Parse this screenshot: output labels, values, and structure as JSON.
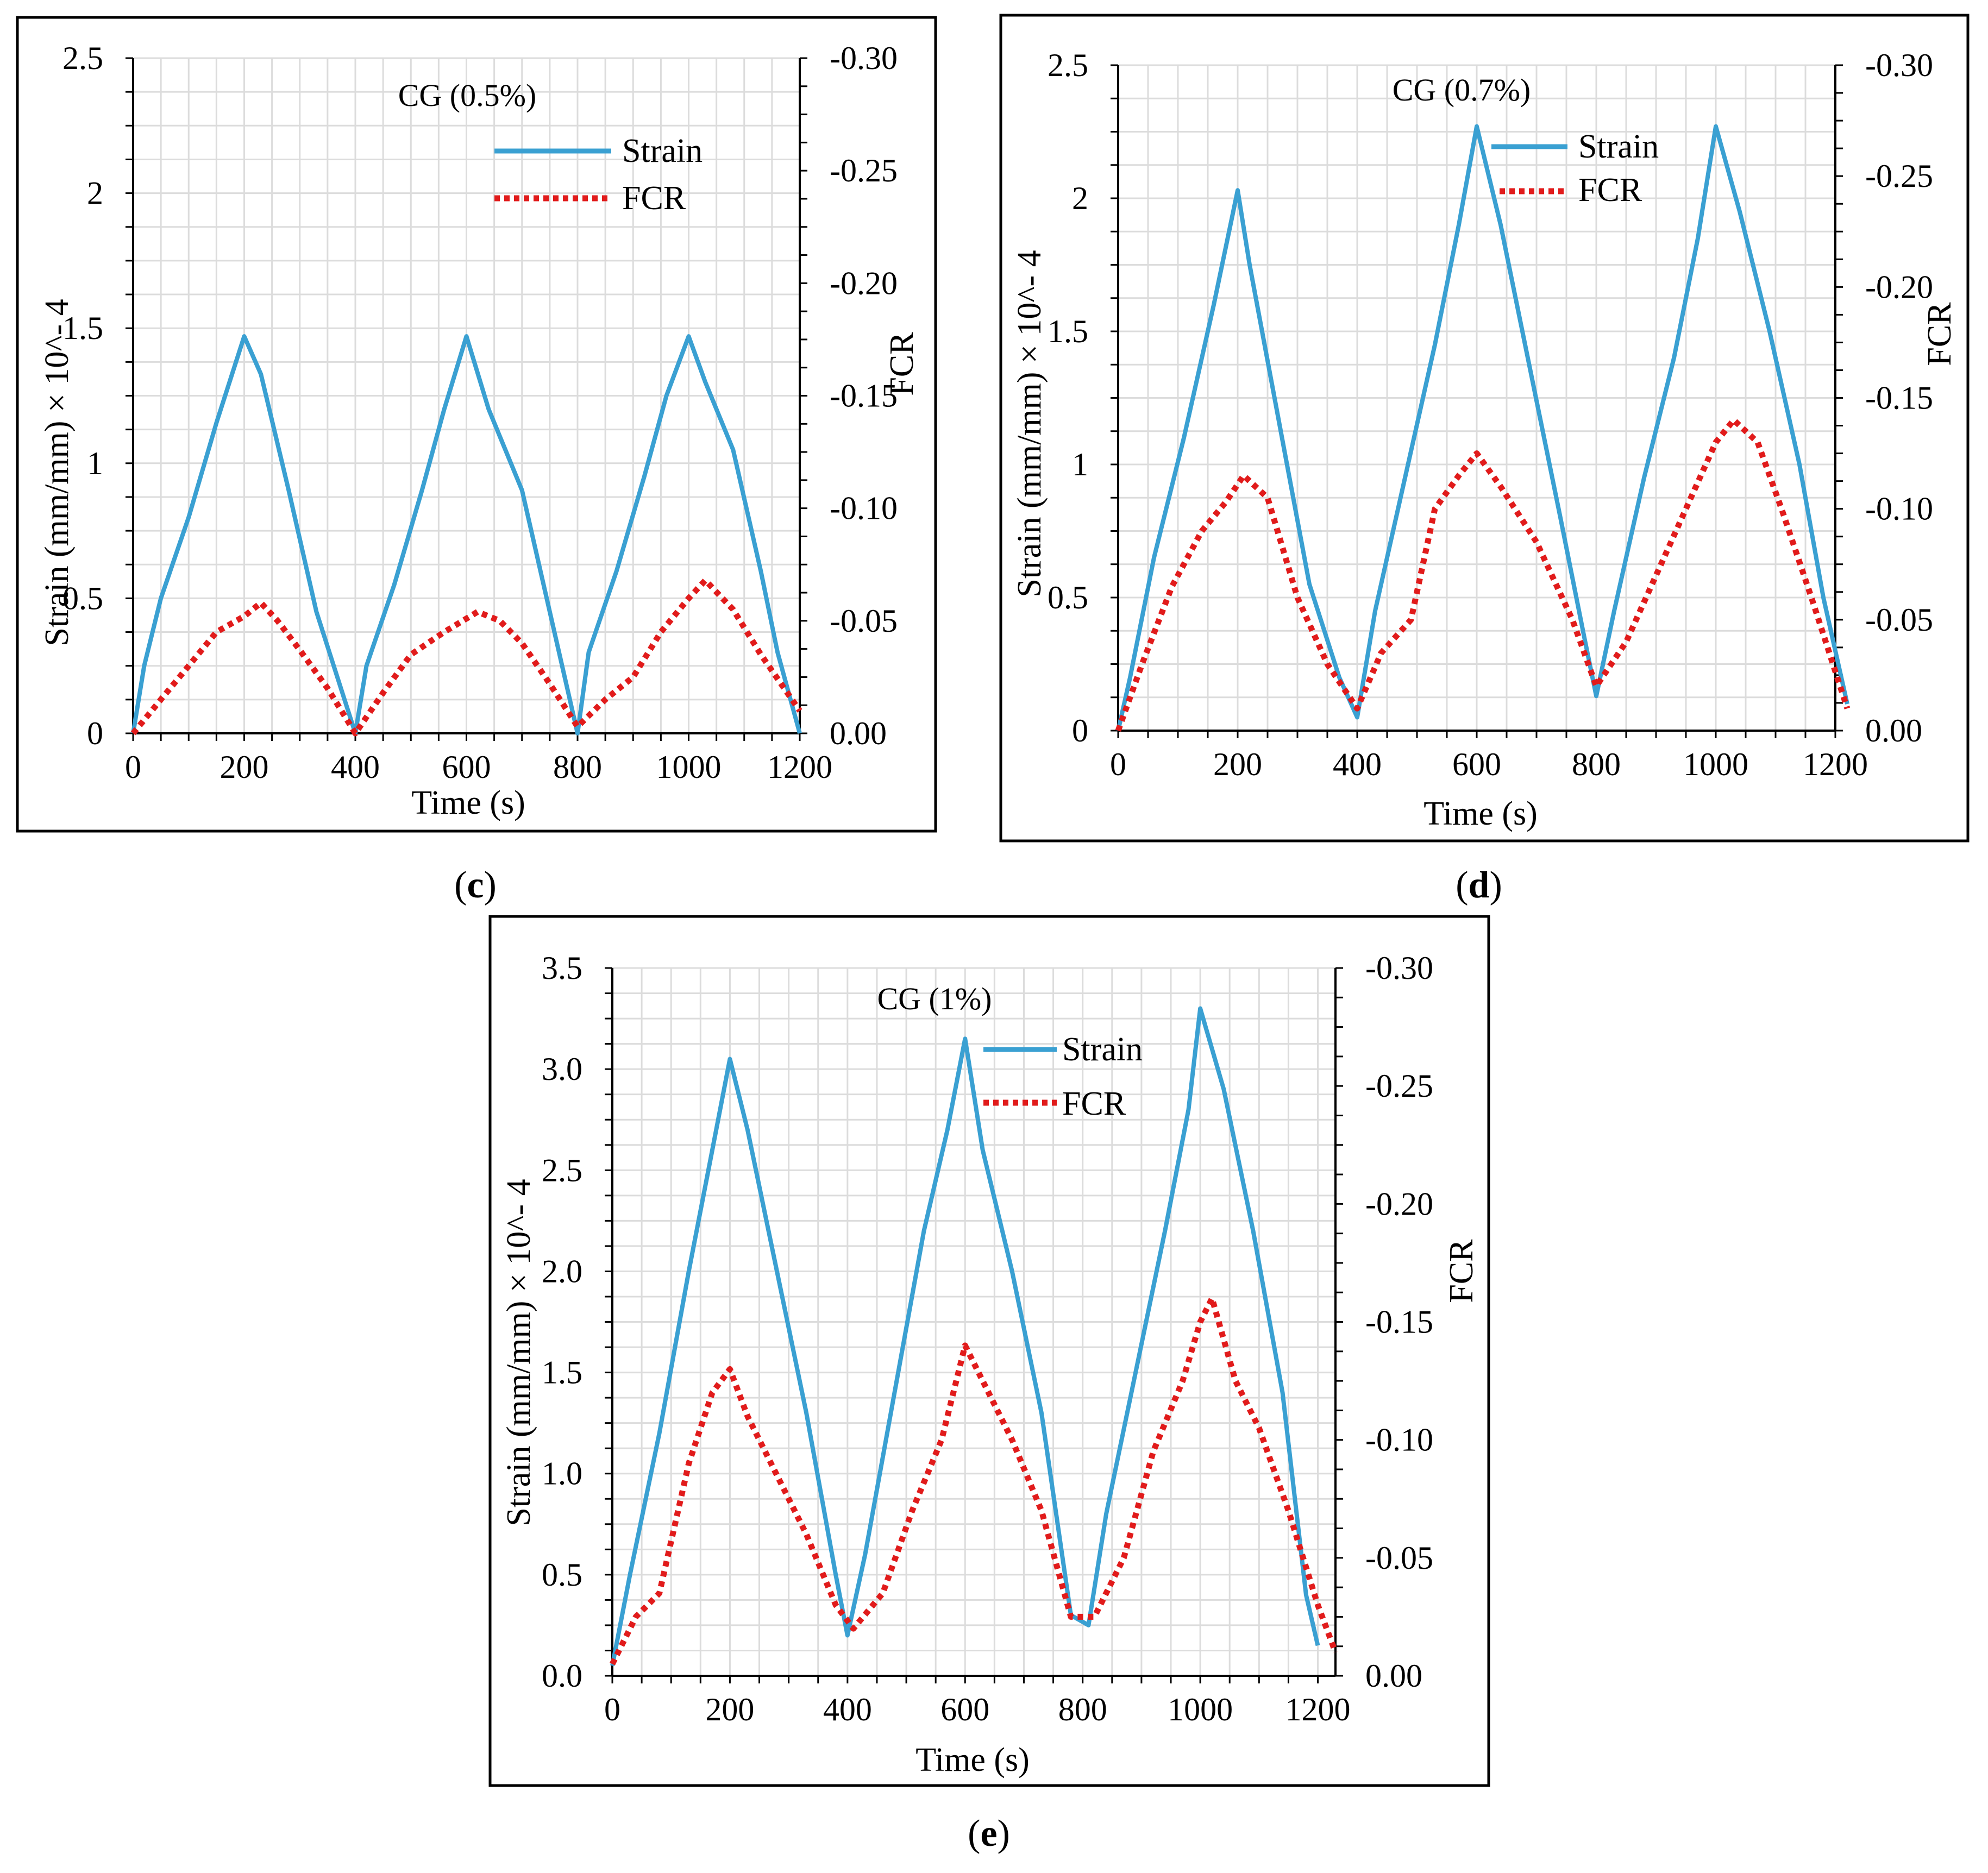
{
  "figure": {
    "panel_labels": [
      "c",
      "d",
      "e"
    ],
    "colors": {
      "strain": "#3AA0D2",
      "fcr": "#E11B1B",
      "grid": "#dcdcdc"
    }
  },
  "chart_data": [
    {
      "panel": "c",
      "type": "line",
      "title": "CG (0.5%)",
      "xlabel": "Time (s)",
      "ylabel": "Strain (mm/mm) × 10^- 4",
      "y2label": "FCR",
      "xlim": [
        0,
        1200
      ],
      "ylim": [
        0,
        2.5
      ],
      "y2lim": [
        0,
        -0.3
      ],
      "xticks": [
        0,
        200,
        400,
        600,
        800,
        1000,
        1200
      ],
      "xtick_labels": [
        "0",
        "200",
        "400",
        "600",
        "800",
        "1000",
        "1200"
      ],
      "yticks": [
        0,
        0.5,
        1,
        1.5,
        2,
        2.5
      ],
      "ytick_labels": [
        "0",
        "0.5",
        "1",
        "1.5",
        "2",
        "2.5"
      ],
      "y2ticks": [
        0,
        -0.05,
        -0.1,
        -0.15,
        -0.2,
        -0.25,
        -0.3
      ],
      "y2tick_labels": [
        "0.00",
        "-0.05",
        "-0.10",
        "-0.15",
        "-0.20",
        "-0.25",
        "-0.30"
      ],
      "legend": [
        "Strain",
        "FCR"
      ],
      "series": [
        {
          "name": "Strain",
          "axis": "left",
          "style": "solid",
          "x": [
            0,
            20,
            50,
            100,
            150,
            200,
            230,
            280,
            330,
            400,
            420,
            470,
            520,
            560,
            600,
            640,
            700,
            750,
            800,
            820,
            870,
            920,
            960,
            1000,
            1030,
            1080,
            1130,
            1160,
            1200
          ],
          "y": [
            0,
            0.25,
            0.5,
            0.8,
            1.15,
            1.47,
            1.33,
            0.9,
            0.45,
            0,
            0.25,
            0.55,
            0.9,
            1.2,
            1.47,
            1.2,
            0.9,
            0.45,
            0,
            0.3,
            0.6,
            0.95,
            1.25,
            1.47,
            1.3,
            1.05,
            0.6,
            0.3,
            0
          ]
        },
        {
          "name": "FCR",
          "axis": "right",
          "style": "dotted",
          "x": [
            0,
            50,
            100,
            150,
            200,
            230,
            260,
            300,
            350,
            400,
            450,
            500,
            560,
            620,
            660,
            700,
            750,
            800,
            850,
            900,
            950,
            1000,
            1030,
            1080,
            1130,
            1200
          ],
          "y": [
            0,
            -0.015,
            -0.03,
            -0.045,
            -0.052,
            -0.058,
            -0.05,
            -0.037,
            -0.02,
            0,
            -0.018,
            -0.035,
            -0.045,
            -0.054,
            -0.05,
            -0.04,
            -0.022,
            -0.003,
            -0.015,
            -0.025,
            -0.045,
            -0.06,
            -0.068,
            -0.055,
            -0.035,
            -0.01
          ]
        }
      ]
    },
    {
      "panel": "d",
      "type": "line",
      "title": "CG (0.7%)",
      "xlabel": "Time (s)",
      "ylabel": "Strain (mm/mm) × 10^- 4",
      "y2label": "FCR",
      "xlim": [
        0,
        1200
      ],
      "ylim": [
        0,
        2.5
      ],
      "y2lim": [
        0,
        -0.3
      ],
      "xticks": [
        0,
        200,
        400,
        600,
        800,
        1000,
        1200
      ],
      "xtick_labels": [
        "0",
        "200",
        "400",
        "600",
        "800",
        "1000",
        "1200"
      ],
      "yticks": [
        0,
        0.5,
        1,
        1.5,
        2,
        2.5
      ],
      "ytick_labels": [
        "0",
        "0.5",
        "1",
        "1.5",
        "2",
        "2.5"
      ],
      "y2ticks": [
        0,
        -0.05,
        -0.1,
        -0.15,
        -0.2,
        -0.25,
        -0.3
      ],
      "y2tick_labels": [
        "0.00",
        "-0.05",
        "-0.10",
        "-0.15",
        "-0.20",
        "-0.25",
        "-0.30"
      ],
      "legend": [
        "Strain",
        "FCR"
      ],
      "series": [
        {
          "name": "Strain",
          "axis": "left",
          "style": "solid",
          "x": [
            0,
            20,
            60,
            110,
            160,
            200,
            220,
            270,
            320,
            370,
            400,
            430,
            480,
            530,
            570,
            600,
            640,
            690,
            740,
            780,
            800,
            830,
            880,
            930,
            970,
            1000,
            1040,
            1090,
            1140,
            1180,
            1220
          ],
          "y": [
            0,
            0.2,
            0.65,
            1.1,
            1.6,
            2.03,
            1.75,
            1.15,
            0.55,
            0.2,
            0.05,
            0.45,
            0.95,
            1.45,
            1.9,
            2.27,
            1.9,
            1.35,
            0.8,
            0.35,
            0.13,
            0.45,
            0.95,
            1.4,
            1.85,
            2.27,
            1.95,
            1.5,
            1.0,
            0.5,
            0.1
          ]
        },
        {
          "name": "FCR",
          "axis": "right",
          "style": "dotted",
          "x": [
            0,
            40,
            90,
            140,
            180,
            210,
            250,
            300,
            350,
            400,
            440,
            490,
            530,
            570,
            600,
            640,
            700,
            760,
            800,
            850,
            900,
            950,
            1000,
            1030,
            1070,
            1110,
            1160,
            1220
          ],
          "y": [
            0,
            -0.03,
            -0.065,
            -0.09,
            -0.103,
            -0.115,
            -0.105,
            -0.06,
            -0.03,
            -0.01,
            -0.035,
            -0.05,
            -0.1,
            -0.115,
            -0.125,
            -0.11,
            -0.085,
            -0.05,
            -0.02,
            -0.04,
            -0.07,
            -0.1,
            -0.13,
            -0.14,
            -0.13,
            -0.1,
            -0.06,
            -0.01
          ]
        }
      ]
    },
    {
      "panel": "e",
      "type": "line",
      "title": "CG (1%)",
      "xlabel": "Time (s)",
      "ylabel": "Strain (mm/mm) × 10^- 4",
      "y2label": "FCR",
      "xlim": [
        0,
        1230
      ],
      "ylim": [
        0,
        3.5
      ],
      "y2lim": [
        0,
        -0.3
      ],
      "xticks": [
        0,
        200,
        400,
        600,
        800,
        1000,
        1200
      ],
      "xtick_labels": [
        "0",
        "200",
        "400",
        "600",
        "800",
        "1000",
        "1200"
      ],
      "yticks": [
        0,
        0.5,
        1,
        1.5,
        2,
        2.5,
        3,
        3.5
      ],
      "ytick_labels": [
        "0.0",
        "0.5",
        "1.0",
        "1.5",
        "2.0",
        "2.5",
        "3.0",
        "3.5"
      ],
      "y2ticks": [
        0,
        -0.05,
        -0.1,
        -0.15,
        -0.2,
        -0.25,
        -0.3
      ],
      "y2tick_labels": [
        "0.00",
        "-0.05",
        "-0.10",
        "-0.15",
        "-0.20",
        "-0.25",
        "-0.30"
      ],
      "legend": [
        "Strain",
        "FCR"
      ],
      "series": [
        {
          "name": "Strain",
          "axis": "left",
          "style": "solid",
          "x": [
            0,
            30,
            80,
            130,
            170,
            200,
            230,
            280,
            330,
            380,
            400,
            430,
            480,
            530,
            570,
            600,
            630,
            680,
            730,
            780,
            810,
            840,
            890,
            940,
            980,
            1000,
            1040,
            1090,
            1140,
            1180,
            1200
          ],
          "y": [
            0.05,
            0.5,
            1.2,
            2.0,
            2.6,
            3.05,
            2.7,
            2.0,
            1.3,
            0.5,
            0.2,
            0.6,
            1.4,
            2.2,
            2.7,
            3.15,
            2.6,
            2.0,
            1.3,
            0.3,
            0.25,
            0.8,
            1.5,
            2.2,
            2.8,
            3.3,
            2.9,
            2.2,
            1.4,
            0.4,
            0.15
          ]
        },
        {
          "name": "FCR",
          "axis": "right",
          "style": "dotted",
          "x": [
            0,
            40,
            80,
            130,
            170,
            200,
            230,
            280,
            330,
            380,
            410,
            460,
            510,
            560,
            600,
            630,
            680,
            730,
            780,
            820,
            870,
            920,
            970,
            1000,
            1020,
            1060,
            1100,
            1150,
            1200,
            1230
          ],
          "y": [
            -0.005,
            -0.025,
            -0.035,
            -0.09,
            -0.12,
            -0.13,
            -0.11,
            -0.085,
            -0.06,
            -0.03,
            -0.02,
            -0.035,
            -0.07,
            -0.1,
            -0.14,
            -0.125,
            -0.1,
            -0.07,
            -0.025,
            -0.025,
            -0.05,
            -0.095,
            -0.125,
            -0.15,
            -0.16,
            -0.125,
            -0.105,
            -0.07,
            -0.03,
            -0.01
          ]
        }
      ]
    }
  ]
}
